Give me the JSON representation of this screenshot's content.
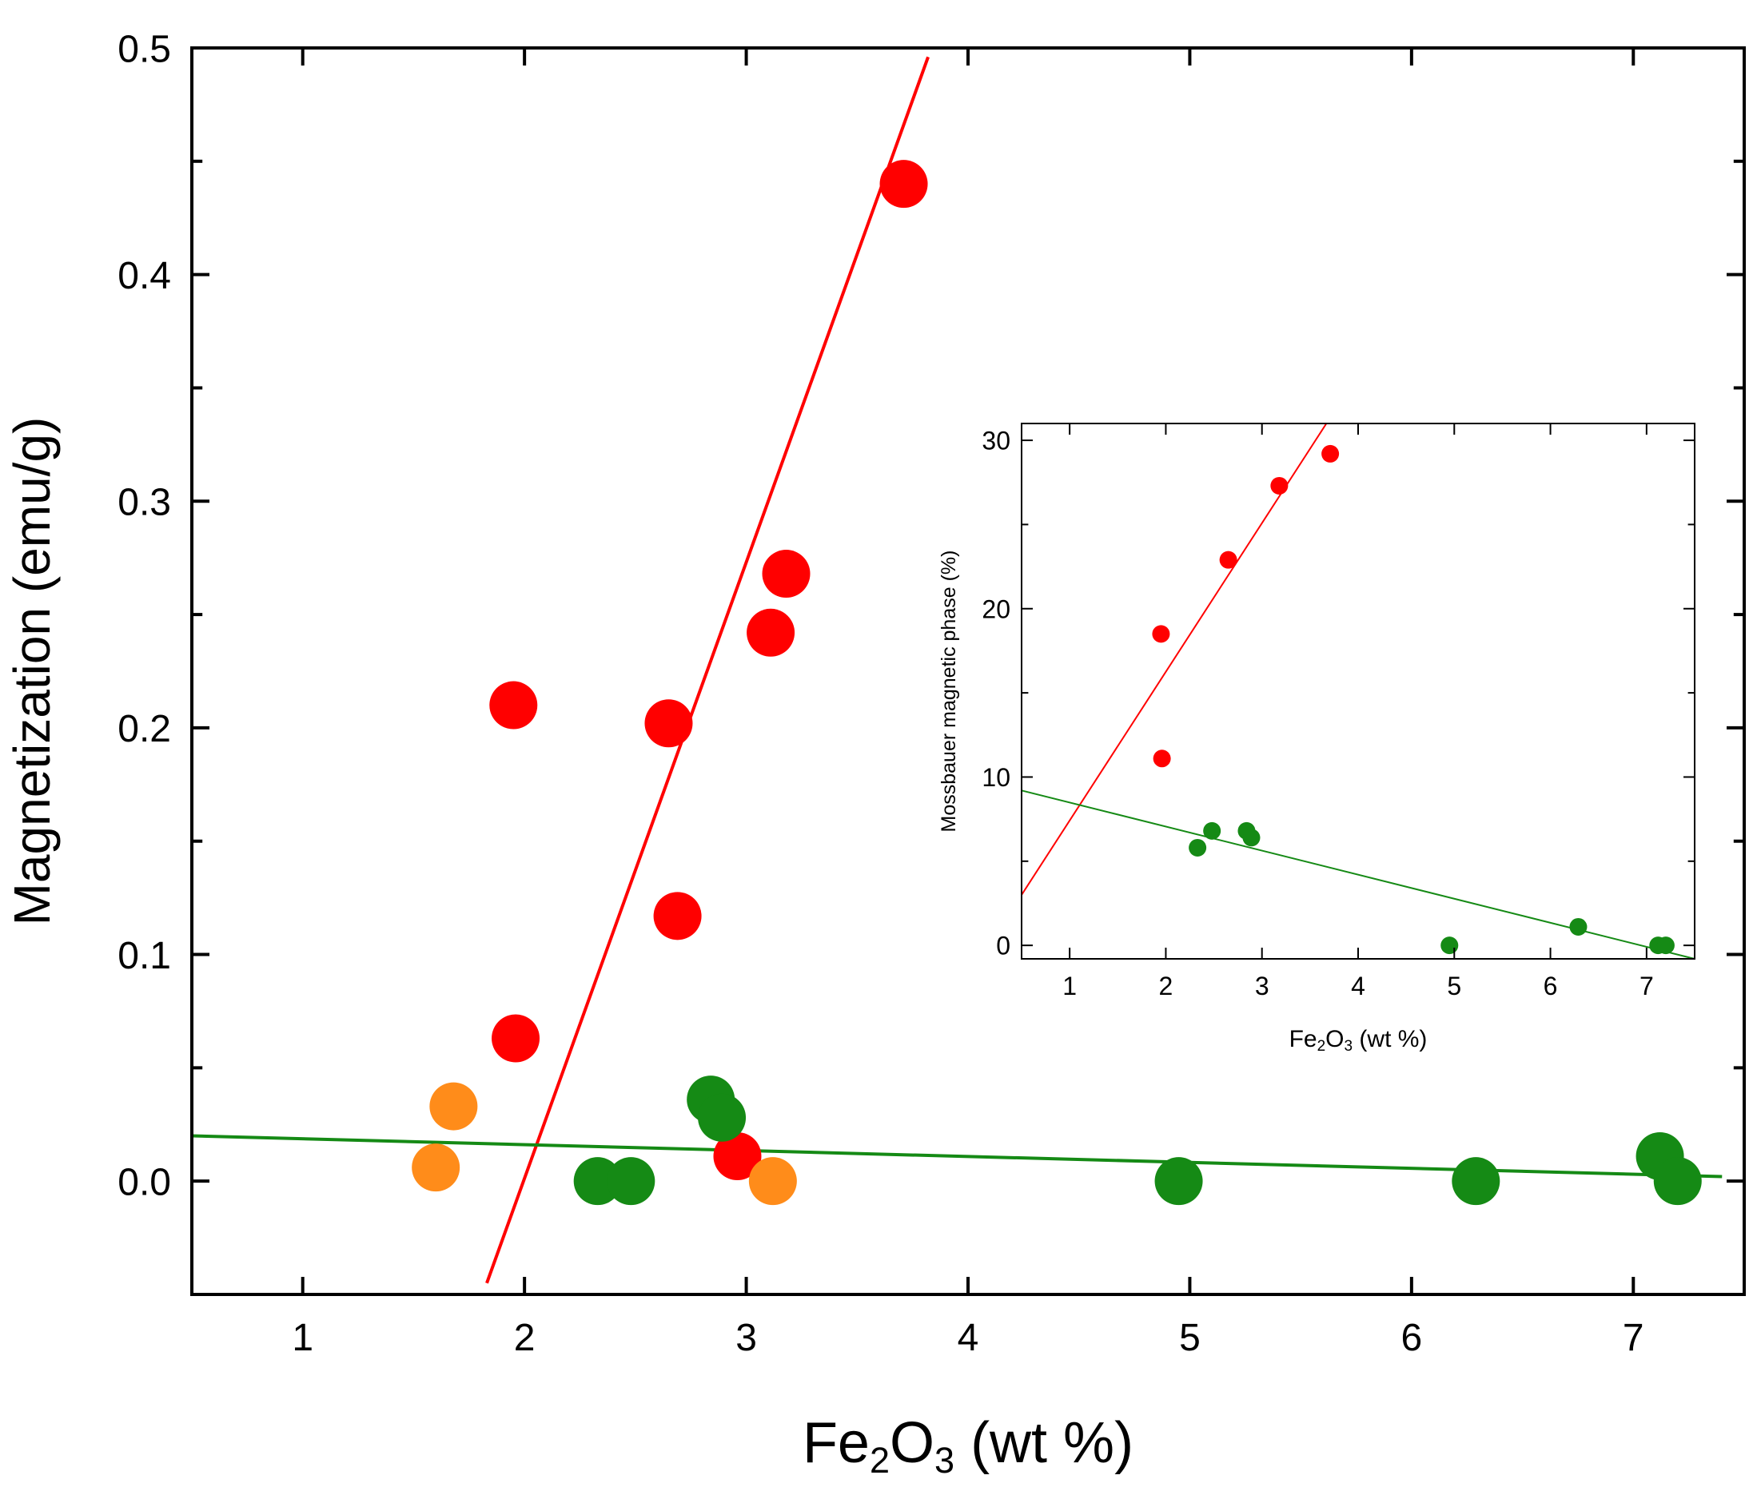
{
  "chart_data": [
    {
      "type": "scatter",
      "name": "main",
      "xlabel": {
        "prefix": "Fe",
        "sub1": "2",
        "mid": "O",
        "sub2": "3",
        "suffix": " (wt %)"
      },
      "ylabel": "Magnetization (emu/g)",
      "xlim": [
        0.5,
        7.5
      ],
      "ylim": [
        -0.05,
        0.5
      ],
      "xticks": [
        1,
        2,
        3,
        4,
        5,
        6,
        7
      ],
      "yticks": [
        0.0,
        0.1,
        0.2,
        0.3,
        0.4,
        0.5
      ],
      "ytick_labels": [
        "0.0",
        "0.1",
        "0.2",
        "0.3",
        "0.4",
        "0.5"
      ],
      "series": [
        {
          "name": "red",
          "color": "#ff0000",
          "points": [
            [
              1.95,
              0.21
            ],
            [
              1.96,
              0.063
            ],
            [
              2.65,
              0.202
            ],
            [
              2.69,
              0.117
            ],
            [
              2.96,
              0.011
            ],
            [
              3.11,
              0.242
            ],
            [
              3.18,
              0.268
            ],
            [
              3.71,
              0.44
            ]
          ]
        },
        {
          "name": "orange",
          "color": "#ff8c1a",
          "points": [
            [
              1.6,
              0.006
            ],
            [
              1.68,
              0.033
            ],
            [
              3.12,
              0.0
            ]
          ]
        },
        {
          "name": "green",
          "color": "#158a15",
          "points": [
            [
              2.33,
              0.0
            ],
            [
              2.48,
              0.0
            ],
            [
              2.84,
              0.036
            ],
            [
              2.89,
              0.028
            ],
            [
              4.95,
              0.0
            ],
            [
              6.29,
              0.0
            ],
            [
              7.12,
              0.011
            ],
            [
              7.2,
              0.0
            ]
          ]
        }
      ],
      "fit_lines": [
        {
          "name": "red-fit",
          "color": "#ff0000",
          "x": [
            1.83,
            3.82
          ],
          "y": [
            -0.045,
            0.496
          ]
        },
        {
          "name": "green-fit",
          "color": "#158a15",
          "x": [
            0.5,
            7.4
          ],
          "y": [
            0.02,
            0.002
          ]
        }
      ]
    },
    {
      "type": "scatter",
      "name": "inset",
      "xlabel": {
        "prefix": "Fe",
        "sub1": "2",
        "mid": "O",
        "sub2": "3",
        "suffix": " (wt %)"
      },
      "ylabel": "Mossbauer magnetic phase (%)",
      "xlim": [
        0.5,
        7.5
      ],
      "ylim": [
        -0.8,
        31
      ],
      "xticks": [
        1,
        2,
        3,
        4,
        5,
        6,
        7
      ],
      "yticks": [
        0,
        10,
        20,
        30
      ],
      "ytick_labels": [
        "0",
        "10",
        "20",
        "30"
      ],
      "series": [
        {
          "name": "red",
          "color": "#ff0000",
          "points": [
            [
              1.95,
              18.5
            ],
            [
              1.96,
              11.1
            ],
            [
              2.65,
              22.9
            ],
            [
              3.18,
              27.3
            ],
            [
              3.71,
              29.2
            ]
          ]
        },
        {
          "name": "green",
          "color": "#158a15",
          "points": [
            [
              2.33,
              5.8
            ],
            [
              2.48,
              6.8
            ],
            [
              2.84,
              6.8
            ],
            [
              2.89,
              6.4
            ],
            [
              4.95,
              0.0
            ],
            [
              6.29,
              1.1
            ],
            [
              7.12,
              0.0
            ],
            [
              7.2,
              0.0
            ]
          ]
        }
      ],
      "fit_lines": [
        {
          "name": "red-fit",
          "color": "#ff0000",
          "x": [
            0.5,
            3.67
          ],
          "y": [
            3.0,
            31.0
          ]
        },
        {
          "name": "green-fit",
          "color": "#158a15",
          "x": [
            0.5,
            7.5
          ],
          "y": [
            9.2,
            -0.8
          ]
        }
      ]
    }
  ]
}
